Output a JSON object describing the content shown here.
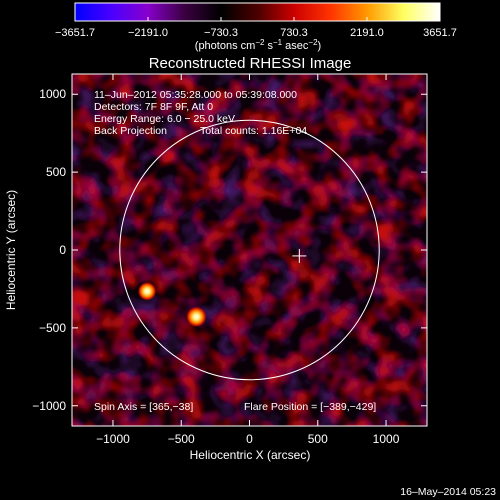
{
  "chart_data": {
    "type": "heatmap",
    "title": "Reconstructed RHESSI Image",
    "xlabel": "Heliocentric X (arcsec)",
    "ylabel": "Heliocentric Y (arcsec)",
    "xlim": [
      -1300,
      1300
    ],
    "ylim": [
      -1130,
      1130
    ],
    "xticks": [
      -1000,
      -500,
      0,
      500,
      1000
    ],
    "xtick_labels": [
      "−1000",
      "−500",
      "0",
      "500",
      "1000"
    ],
    "yticks": [
      -1000,
      -500,
      0,
      500,
      1000
    ],
    "ytick_labels": [
      "−1000",
      "−500",
      "0",
      "500",
      "1000"
    ],
    "colorbar": {
      "min": -3651.7,
      "max": 3651.7,
      "tick_values": [
        -3651.7,
        -2191.0,
        -730.3,
        730.3,
        2191.0,
        3651.7
      ],
      "tick_labels": [
        "−3651.7",
        "−2191.0",
        "−730.3",
        "730.3",
        "2191.0",
        "3651.7"
      ],
      "units_prefix": "(photons cm",
      "units_sup1": "−2",
      "units_mid1": " s",
      "units_sup2": "−1",
      "units_mid2": " asec",
      "units_sup3": "−2",
      "units_suffix": ")"
    },
    "annotations": {
      "time_range": "11–Jun–2012 05:35:28.000 to 05:39:08.000",
      "detectors": "Detectors: 7F 8F 9F, Att 0",
      "energy_range": "Energy Range: 6.0 − 25.0 keV",
      "method": "Back Projection",
      "total_counts": "Total counts: 1.16E+04",
      "spin_axis": "Spin Axis = [365,−38]",
      "flare_position": "Flare Position = [−389,−429]"
    },
    "solar_disk": {
      "center": [
        0,
        0
      ],
      "radius": 950
    },
    "spin_axis_marker": [
      365,
      -38
    ],
    "sources": [
      {
        "x": -389,
        "y": -429,
        "intensity": 3651.7
      },
      {
        "x": -750,
        "y": -265,
        "intensity": 3000
      }
    ],
    "footer_date": "16–May–2014 05:23"
  },
  "colors": {
    "colormap": [
      "#0000ff",
      "#4a00ff",
      "#8800cc",
      "#3a0040",
      "#000000",
      "#4a0000",
      "#cc0000",
      "#ff3300",
      "#ff9900",
      "#ffff60",
      "#ffffff"
    ]
  }
}
